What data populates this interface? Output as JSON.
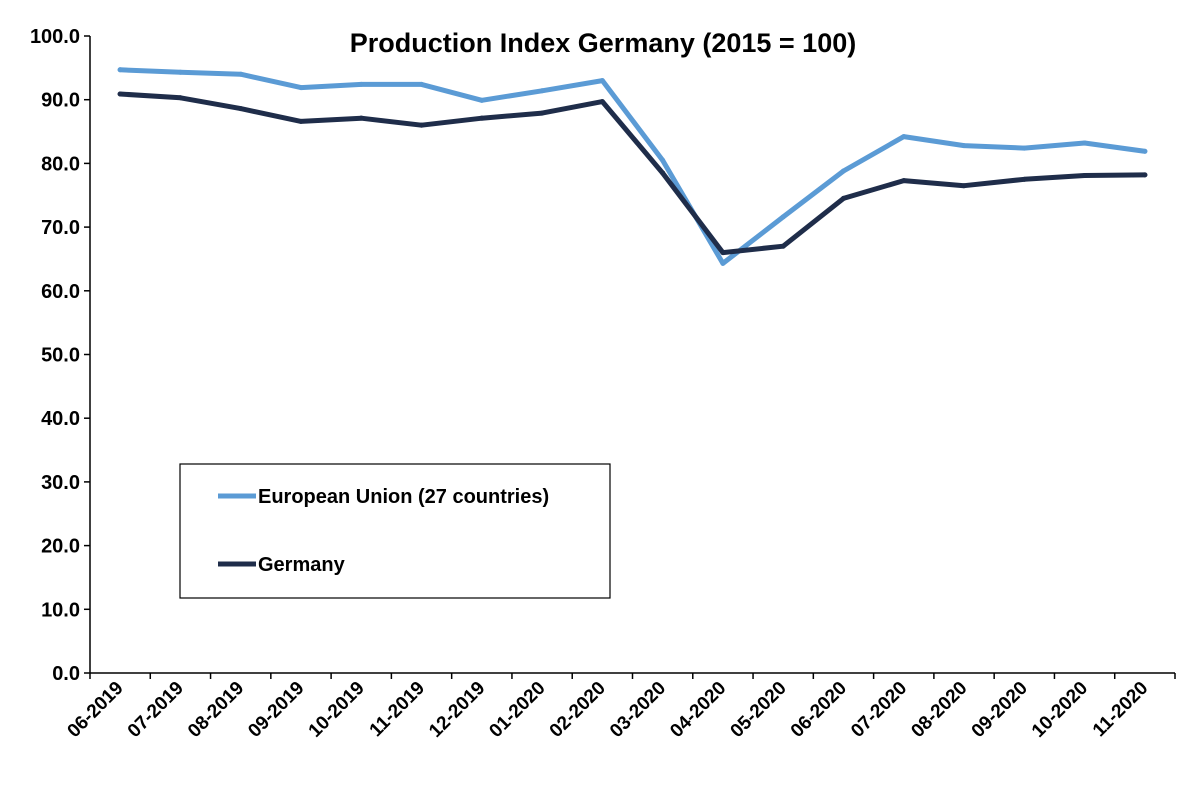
{
  "chart_data": {
    "type": "line",
    "title": "Production Index Germany (2015 = 100)",
    "xlabel": "",
    "ylabel": "",
    "ylim": [
      0,
      100
    ],
    "yticks": [
      "0.0",
      "10.0",
      "20.0",
      "30.0",
      "40.0",
      "50.0",
      "60.0",
      "70.0",
      "80.0",
      "90.0",
      "100.0"
    ],
    "grid": false,
    "legend_position": "center-left",
    "categories": [
      "06-2019",
      "07-2019",
      "08-2019",
      "09-2019",
      "10-2019",
      "11-2019",
      "12-2019",
      "01-2020",
      "02-2020",
      "03-2020",
      "04-2020",
      "05-2020",
      "06-2020",
      "07-2020",
      "08-2020",
      "09-2020",
      "10-2020",
      "11-2020"
    ],
    "series": [
      {
        "name": "European Union (27 countries)",
        "color": "#5b9bd5",
        "values": [
          94.7,
          94.3,
          94.0,
          91.9,
          92.4,
          92.4,
          89.9,
          91.4,
          93.0,
          80.5,
          64.3,
          71.6,
          78.8,
          84.2,
          82.8,
          82.4,
          83.2,
          81.9
        ]
      },
      {
        "name": "Germany",
        "color": "#1f2d4a",
        "values": [
          90.9,
          90.3,
          88.6,
          86.6,
          87.1,
          86.0,
          87.1,
          87.9,
          89.7,
          78.5,
          66.0,
          67.0,
          74.5,
          77.3,
          76.5,
          77.5,
          78.1,
          78.2
        ]
      }
    ]
  }
}
